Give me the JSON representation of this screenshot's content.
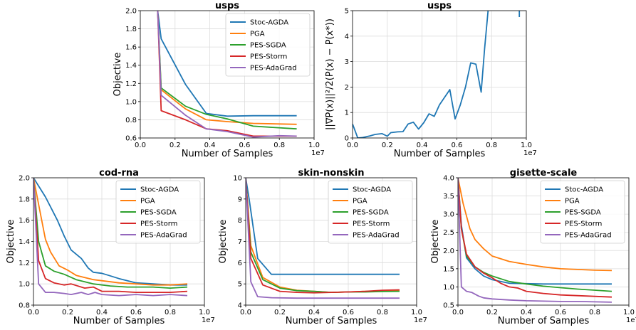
{
  "series_colors": {
    "Stoc-AGDA": "#1f77b4",
    "PGA": "#ff7f0e",
    "PES-SGDA": "#2ca02c",
    "PES-Storm": "#d62728",
    "PES-AdaGrad": "#9467bd"
  },
  "chart_data": [
    {
      "type": "line",
      "title": "usps",
      "xlabel": "Number of Samples",
      "ylabel": "Objective",
      "x_multiplier": "1e7",
      "xlim": [
        0,
        1.0
      ],
      "ylim": [
        0.6,
        2.0
      ],
      "xticks": [
        "0.0",
        "0.2",
        "0.4",
        "0.6",
        "0.8",
        "1.0"
      ],
      "yticks": [
        "0.6",
        "0.8",
        "1.0",
        "1.2",
        "1.4",
        "1.6",
        "1.8",
        "2.0"
      ],
      "legend": "top-right",
      "grid": true,
      "series": [
        {
          "name": "Stoc-AGDA",
          "x": [
            0.1,
            0.12,
            0.26,
            0.38,
            0.5,
            0.65,
            0.9
          ],
          "y": [
            2.0,
            1.69,
            1.19,
            0.87,
            0.84,
            0.845,
            0.845
          ]
        },
        {
          "name": "PGA",
          "x": [
            0.1,
            0.12,
            0.26,
            0.38,
            0.5,
            0.65,
            0.9
          ],
          "y": [
            2.0,
            1.13,
            0.92,
            0.8,
            0.78,
            0.76,
            0.75
          ]
        },
        {
          "name": "PES-SGDA",
          "x": [
            0.1,
            0.12,
            0.26,
            0.38,
            0.5,
            0.65,
            0.9
          ],
          "y": [
            2.0,
            1.15,
            0.95,
            0.86,
            0.81,
            0.73,
            0.7
          ]
        },
        {
          "name": "PES-Storm",
          "x": [
            0.1,
            0.12,
            0.26,
            0.38,
            0.5,
            0.65,
            0.9
          ],
          "y": [
            2.0,
            0.9,
            0.8,
            0.7,
            0.68,
            0.62,
            0.62
          ]
        },
        {
          "name": "PES-AdaGrad",
          "x": [
            0.1,
            0.12,
            0.26,
            0.38,
            0.5,
            0.65,
            0.8,
            0.9
          ],
          "y": [
            2.0,
            1.07,
            0.85,
            0.7,
            0.67,
            0.61,
            0.625,
            0.62
          ]
        }
      ]
    },
    {
      "type": "line",
      "title": "usps",
      "xlabel": "Number of Samples",
      "ylabel": "||∇P(x)||²/2(P(x) − P(x*))",
      "x_multiplier": "1e7",
      "xlim": [
        0,
        1.0
      ],
      "ylim": [
        0,
        5
      ],
      "xticks": [
        "0.0",
        "0.2",
        "0.4",
        "0.6",
        "0.8",
        "1.0"
      ],
      "yticks": [
        "0",
        "1",
        "2",
        "3",
        "4",
        "5"
      ],
      "legend": "none",
      "grid": true,
      "series": [
        {
          "name": "Stoc-AGDA",
          "x": [
            0.0,
            0.03,
            0.06,
            0.1,
            0.13,
            0.17,
            0.2,
            0.22,
            0.26,
            0.29,
            0.32,
            0.35,
            0.38,
            0.41,
            0.44,
            0.47,
            0.5,
            0.53,
            0.56,
            0.59,
            0.62,
            0.65,
            0.68,
            0.71,
            0.74,
            0.76,
            0.78
          ],
          "y": [
            0.55,
            0.0,
            0.02,
            0.08,
            0.14,
            0.17,
            0.07,
            0.21,
            0.24,
            0.25,
            0.55,
            0.62,
            0.35,
            0.6,
            0.95,
            0.85,
            1.3,
            1.6,
            1.9,
            0.75,
            1.3,
            2.0,
            2.95,
            2.9,
            1.8,
            3.5,
            5.0
          ]
        },
        {
          "name": "Stoc-AGDA",
          "x": [
            0.96,
            0.96
          ],
          "y": [
            5.0,
            4.75
          ]
        }
      ]
    },
    {
      "type": "line",
      "title": "cod-rna",
      "xlabel": "Number of Samples",
      "ylabel": "Objective",
      "x_multiplier": "1e7",
      "xlim": [
        0,
        1.0
      ],
      "ylim": [
        0.8,
        2.0
      ],
      "xticks": [
        "0.0",
        "0.2",
        "0.4",
        "0.6",
        "0.8",
        "1.0"
      ],
      "yticks": [
        "0.8",
        "1.0",
        "1.2",
        "1.4",
        "1.6",
        "1.8",
        "2.0"
      ],
      "legend": "top-right",
      "grid": true,
      "series": [
        {
          "name": "Stoc-AGDA",
          "x": [
            0,
            0.07,
            0.14,
            0.18,
            0.22,
            0.28,
            0.32,
            0.35,
            0.4,
            0.44,
            0.5,
            0.55,
            0.6,
            0.7,
            0.8,
            0.9
          ],
          "y": [
            2.0,
            1.82,
            1.6,
            1.45,
            1.32,
            1.24,
            1.15,
            1.11,
            1.1,
            1.08,
            1.05,
            1.03,
            1.01,
            1.0,
            0.99,
            0.99
          ]
        },
        {
          "name": "PGA",
          "x": [
            0,
            0.03,
            0.07,
            0.1,
            0.15,
            0.2,
            0.25,
            0.3,
            0.35,
            0.4,
            0.5,
            0.6,
            0.7,
            0.8,
            0.9
          ],
          "y": [
            2.0,
            1.75,
            1.42,
            1.3,
            1.17,
            1.13,
            1.08,
            1.06,
            1.04,
            1.03,
            1.01,
            1.0,
            0.99,
            0.99,
            1.0
          ]
        },
        {
          "name": "PES-SGDA",
          "x": [
            0,
            0.03,
            0.07,
            0.12,
            0.18,
            0.25,
            0.35,
            0.45,
            0.55,
            0.7,
            0.8,
            0.9
          ],
          "y": [
            2.0,
            1.4,
            1.17,
            1.12,
            1.09,
            1.04,
            1.0,
            0.98,
            0.97,
            0.97,
            0.96,
            0.97
          ]
        },
        {
          "name": "PES-Storm",
          "x": [
            0,
            0.03,
            0.07,
            0.12,
            0.18,
            0.22,
            0.3,
            0.35,
            0.4,
            0.5,
            0.6,
            0.7,
            0.8,
            0.9
          ],
          "y": [
            2.0,
            1.22,
            1.05,
            1.01,
            0.99,
            1.0,
            0.96,
            0.97,
            0.93,
            0.93,
            0.92,
            0.92,
            0.92,
            0.93
          ]
        },
        {
          "name": "PES-AdaGrad",
          "x": [
            0,
            0.03,
            0.07,
            0.12,
            0.18,
            0.22,
            0.28,
            0.32,
            0.36,
            0.4,
            0.5,
            0.6,
            0.7,
            0.8,
            0.9
          ],
          "y": [
            2.0,
            1.0,
            0.92,
            0.92,
            0.91,
            0.9,
            0.92,
            0.9,
            0.92,
            0.9,
            0.89,
            0.9,
            0.89,
            0.9,
            0.89
          ]
        }
      ]
    },
    {
      "type": "line",
      "title": "skin-nonskin",
      "xlabel": "Number of Samples",
      "ylabel": "Objective",
      "x_multiplier": "1e7",
      "xlim": [
        0,
        1.0
      ],
      "ylim": [
        4,
        10
      ],
      "xticks": [
        "0.0",
        "0.2",
        "0.4",
        "0.6",
        "0.8",
        "1.0"
      ],
      "yticks": [
        "4",
        "5",
        "6",
        "7",
        "8",
        "9",
        "10"
      ],
      "legend": "top-right",
      "grid": true,
      "series": [
        {
          "name": "Stoc-AGDA",
          "x": [
            0,
            0.02,
            0.07,
            0.15,
            0.3,
            0.5,
            0.7,
            0.9
          ],
          "y": [
            10.0,
            9.0,
            6.2,
            5.45,
            5.45,
            5.45,
            5.45,
            5.45
          ]
        },
        {
          "name": "PGA",
          "x": [
            0,
            0.03,
            0.1,
            0.2,
            0.3,
            0.4,
            0.5,
            0.6,
            0.7,
            0.8,
            0.9
          ],
          "y": [
            10.0,
            6.8,
            5.3,
            4.85,
            4.7,
            4.65,
            4.6,
            4.62,
            4.65,
            4.65,
            4.68
          ]
        },
        {
          "name": "PES-SGDA",
          "x": [
            0,
            0.03,
            0.1,
            0.2,
            0.3,
            0.4,
            0.5,
            0.6,
            0.7,
            0.8,
            0.9
          ],
          "y": [
            10.0,
            6.5,
            5.2,
            4.8,
            4.68,
            4.65,
            4.6,
            4.62,
            4.62,
            4.64,
            4.65
          ]
        },
        {
          "name": "PES-Storm",
          "x": [
            0,
            0.03,
            0.1,
            0.2,
            0.3,
            0.4,
            0.5,
            0.6,
            0.7,
            0.8,
            0.9
          ],
          "y": [
            10.0,
            6.2,
            4.95,
            4.65,
            4.6,
            4.58,
            4.6,
            4.62,
            4.65,
            4.7,
            4.72
          ]
        },
        {
          "name": "PES-AdaGrad",
          "x": [
            0,
            0.03,
            0.07,
            0.15,
            0.3,
            0.5,
            0.7,
            0.9
          ],
          "y": [
            10.0,
            5.1,
            4.4,
            4.35,
            4.33,
            4.33,
            4.33,
            4.33
          ]
        }
      ]
    },
    {
      "type": "line",
      "title": "gisette-scale",
      "xlabel": "Number of Samples",
      "ylabel": "Objective",
      "x_multiplier": "1e7",
      "xlim": [
        0,
        1.0
      ],
      "ylim": [
        0.5,
        4.0
      ],
      "xticks": [
        "0.0",
        "0.2",
        "0.4",
        "0.6",
        "0.8",
        "1.0"
      ],
      "yticks": [
        "0.5",
        "1.0",
        "1.5",
        "2.0",
        "2.5",
        "3.0",
        "3.5",
        "4.0"
      ],
      "legend": "top-right",
      "grid": true,
      "series": [
        {
          "name": "Stoc-AGDA",
          "x": [
            0,
            0.02,
            0.05,
            0.1,
            0.15,
            0.2,
            0.3,
            0.5,
            0.7,
            0.9
          ],
          "y": [
            4.0,
            2.7,
            1.8,
            1.5,
            1.3,
            1.2,
            1.1,
            1.08,
            1.08,
            1.08
          ]
        },
        {
          "name": "PGA",
          "x": [
            0,
            0.03,
            0.07,
            0.1,
            0.15,
            0.2,
            0.3,
            0.4,
            0.5,
            0.6,
            0.7,
            0.8,
            0.9
          ],
          "y": [
            4.0,
            3.3,
            2.6,
            2.3,
            2.05,
            1.85,
            1.7,
            1.62,
            1.55,
            1.5,
            1.48,
            1.46,
            1.45
          ]
        },
        {
          "name": "PES-SGDA",
          "x": [
            0,
            0.02,
            0.05,
            0.1,
            0.15,
            0.2,
            0.3,
            0.4,
            0.5,
            0.6,
            0.7,
            0.8,
            0.9
          ],
          "y": [
            4.0,
            2.6,
            1.85,
            1.55,
            1.4,
            1.3,
            1.15,
            1.08,
            1.02,
            0.98,
            0.94,
            0.91,
            0.88
          ]
        },
        {
          "name": "PES-Storm",
          "x": [
            0,
            0.02,
            0.05,
            0.1,
            0.15,
            0.2,
            0.25,
            0.3,
            0.35,
            0.4,
            0.5,
            0.6,
            0.7,
            0.8,
            0.9
          ],
          "y": [
            4.0,
            2.6,
            1.9,
            1.55,
            1.38,
            1.25,
            1.1,
            1.0,
            0.97,
            0.88,
            0.82,
            0.78,
            0.76,
            0.74,
            0.72
          ]
        },
        {
          "name": "PES-AdaGrad",
          "x": [
            0,
            0.02,
            0.05,
            0.08,
            0.12,
            0.15,
            0.2,
            0.3,
            0.4,
            0.5,
            0.6,
            0.7,
            0.8,
            0.9
          ],
          "y": [
            4.0,
            1.0,
            0.88,
            0.85,
            0.75,
            0.7,
            0.67,
            0.64,
            0.62,
            0.61,
            0.6,
            0.6,
            0.59,
            0.58
          ]
        }
      ]
    }
  ]
}
